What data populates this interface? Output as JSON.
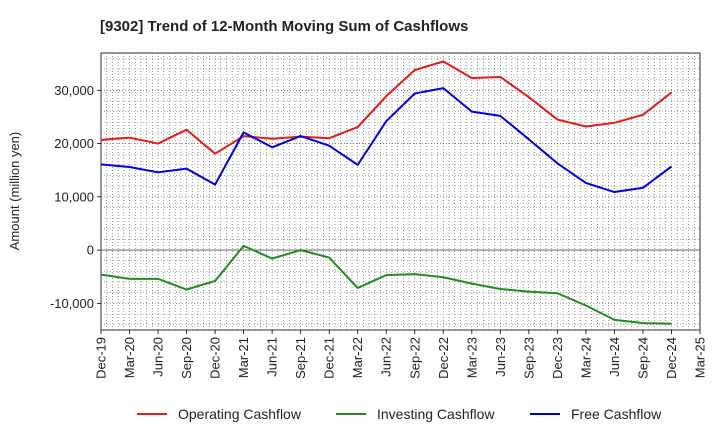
{
  "chart_data": {
    "type": "line",
    "title": "[9302]  Trend of 12-Month Moving Sum of Cashflows",
    "xlabel": "",
    "ylabel": "Amount (million yen)",
    "ylim": [
      -15000,
      37000
    ],
    "yticks": [
      -10000,
      0,
      10000,
      20000,
      30000
    ],
    "ytick_labels": [
      "-10,000",
      "0",
      "10,000",
      "20,000",
      "30,000"
    ],
    "grid": true,
    "legend_position": "bottom",
    "categories": [
      "Dec-19",
      "Mar-20",
      "Jun-20",
      "Sep-20",
      "Dec-20",
      "Mar-21",
      "Jun-21",
      "Sep-21",
      "Dec-21",
      "Mar-22",
      "Jun-22",
      "Sep-22",
      "Dec-22",
      "Mar-23",
      "Jun-23",
      "Sep-23",
      "Dec-23",
      "Mar-24",
      "Jun-24",
      "Sep-24",
      "Dec-24",
      "Mar-25"
    ],
    "series": [
      {
        "name": "Operating Cashflow",
        "color": "#e41a1c",
        "values": [
          20700,
          21100,
          20000,
          22600,
          18100,
          21400,
          20900,
          21300,
          21000,
          23100,
          28900,
          33800,
          35400,
          32300,
          32500,
          28700,
          24500,
          23200,
          23900,
          25400,
          29600,
          null
        ]
      },
      {
        "name": "Investing Cashflow",
        "color": "#228b22",
        "values": [
          -4600,
          -5400,
          -5400,
          -7400,
          -5800,
          800,
          -1600,
          0,
          -1400,
          -7100,
          -4700,
          -4500,
          -5100,
          -6300,
          -7300,
          -7800,
          -8100,
          -10400,
          -13100,
          -13700,
          -13800,
          null
        ]
      },
      {
        "name": "Free Cashflow",
        "color": "#0000dd",
        "values": [
          16100,
          15600,
          14600,
          15300,
          12300,
          22100,
          19300,
          21400,
          19600,
          16000,
          24200,
          29400,
          30400,
          26000,
          25200,
          20800,
          16300,
          12600,
          10900,
          11700,
          15700,
          null
        ]
      }
    ]
  }
}
